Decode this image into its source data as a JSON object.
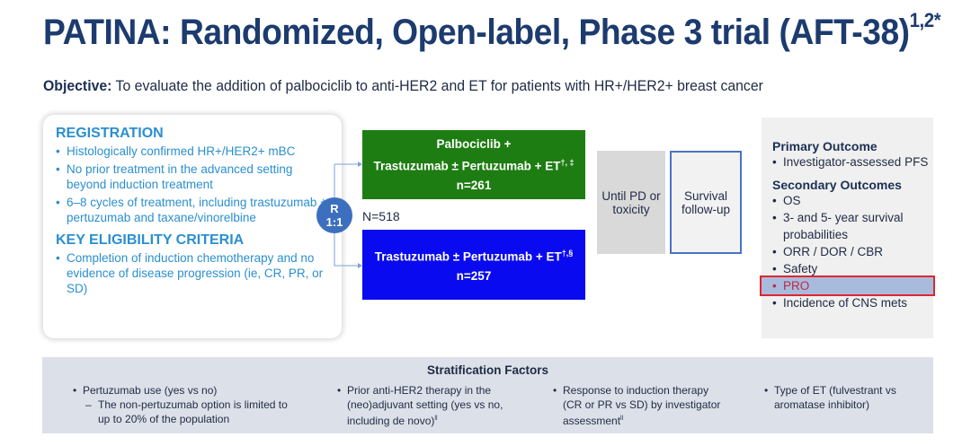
{
  "title": {
    "text": "PATINA: Randomized, Open-label, Phase 3 trial (AFT-38)",
    "superscript": "1,2*"
  },
  "objective": {
    "label": "Objective:",
    "text": "To evaluate the addition of palbociclib to anti-HER2 and ET for patients with HR+/HER2+ breast cancer"
  },
  "registration": {
    "heading": "REGISTRATION",
    "items": [
      "Histologically confirmed HR+/HER2+ mBC",
      "No prior treatment in the advanced setting beyond induction treatment",
      "6–8 cycles of treatment, including trastuzumab ± pertuzumab and taxane/vinorelbine"
    ]
  },
  "eligibility": {
    "heading": "KEY ELIGIBILITY CRITERIA",
    "items": [
      "Completion of induction chemotherapy and no evidence of disease progression (ie, CR, PR, or SD)"
    ]
  },
  "randomization": {
    "line1": "R",
    "line2": "1:1",
    "total": "N=518"
  },
  "arms": [
    {
      "line1": "Palbociclib +",
      "line2": "Trastuzumab ± Pertuzumab + ET",
      "sup": "†, ‡",
      "n": "n=261",
      "color": "#1e7d12"
    },
    {
      "line1": "",
      "line2": "Trastuzumab ± Pertuzumab + ET",
      "sup": "†,§",
      "n": "n=257",
      "color": "#0a0af0"
    }
  ],
  "until_box": {
    "text": "Until PD or toxicity"
  },
  "survival_box": {
    "text": "Survival follow-up"
  },
  "outcomes": {
    "primary_heading": "Primary Outcome",
    "primary": [
      "Investigator-assessed PFS"
    ],
    "secondary_heading": "Secondary Outcomes",
    "secondary": [
      "OS",
      "3- and 5- year survival probabilities",
      "ORR / DOR / CBR",
      "Safety",
      "PRO",
      "Incidence of CNS mets"
    ],
    "highlighted": "PRO"
  },
  "stratification": {
    "heading": "Stratification Factors",
    "factors": [
      {
        "text": "Pertuzumab use (yes vs no)",
        "sub": "The non-pertuzumab option is limited to up to 20% of the population"
      },
      {
        "text": "Prior anti-HER2 therapy in the (neo)adjuvant setting (yes vs no, including de novo)",
        "sup": "ll"
      },
      {
        "text": "Response to induction therapy (CR or PR vs SD) by investigator assessment",
        "sup": "ll"
      },
      {
        "text": "Type of ET (fulvestrant vs aromatase inhibitor)"
      }
    ]
  }
}
